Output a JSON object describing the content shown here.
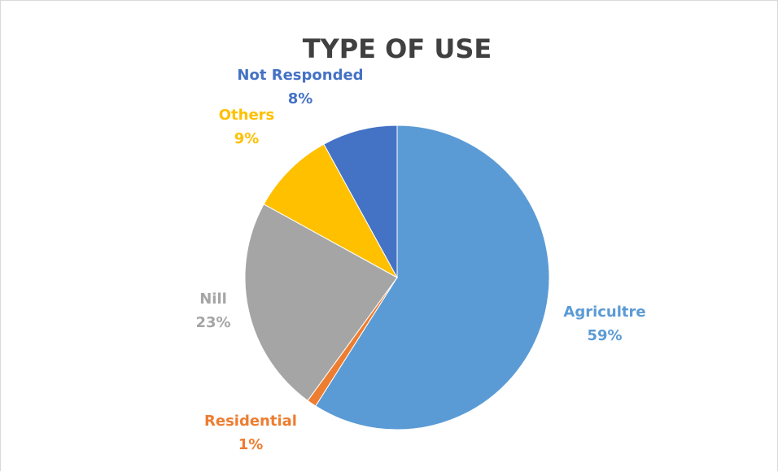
{
  "chart_data": {
    "type": "pie",
    "title": "TYPE OF USE",
    "slices": [
      {
        "label": "Agricultre",
        "value": 59,
        "display": "59%",
        "color": "#5B9BD5"
      },
      {
        "label": "Residential",
        "value": 1,
        "display": "1%",
        "color": "#ED7D31"
      },
      {
        "label": "Nill",
        "value": 23,
        "display": "23%",
        "color": "#A5A5A5"
      },
      {
        "label": "Others",
        "value": 9,
        "display": "9%",
        "color": "#FFC000"
      },
      {
        "label": "Not Responded",
        "value": 8,
        "display": "8%",
        "color": "#4472C4"
      }
    ],
    "start": "12 o'clock",
    "direction": "clockwise"
  }
}
